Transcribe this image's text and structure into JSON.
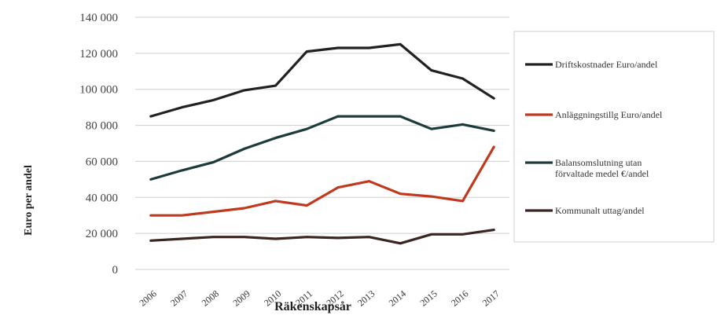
{
  "chart_data": {
    "type": "line",
    "title": "",
    "xlabel": "Räkenskapsår",
    "ylabel": "Euro per andel",
    "ylim": [
      0,
      140000
    ],
    "yticks": [
      0,
      20000,
      40000,
      60000,
      80000,
      100000,
      120000,
      140000
    ],
    "yticklabels": [
      "0",
      "20 000",
      "40 000",
      "60 000",
      "80 000",
      "100 000",
      "120 000",
      "140 000"
    ],
    "x": [
      "2006",
      "2007",
      "2008",
      "2009",
      "2010",
      "2011",
      "2012",
      "2013",
      "2014",
      "2015",
      "2016",
      "2017"
    ],
    "grid": true,
    "legend_position": "right",
    "series": [
      {
        "name": "Driftskostnader Euro/andel",
        "color": "#1f2222",
        "values": [
          85000,
          90000,
          94000,
          99500,
          102000,
          121000,
          123000,
          123000,
          125000,
          110500,
          106000,
          95000
        ]
      },
      {
        "name": "Anläggningstillg Euro/andel",
        "color": "#c0391e",
        "values": [
          30000,
          30000,
          32000,
          34000,
          38000,
          35500,
          45500,
          49000,
          42000,
          40500,
          38000,
          68000
        ]
      },
      {
        "name": "Balansomslutning utan förvaltade medel €/andel",
        "color": "#1d3b3a",
        "values": [
          50000,
          55000,
          59500,
          67000,
          73000,
          78000,
          85000,
          85000,
          85000,
          78000,
          80500,
          77000
        ]
      },
      {
        "name": "Kommunalt uttag/andel",
        "color": "#3a2520",
        "values": [
          16000,
          17000,
          18000,
          18000,
          17000,
          18000,
          17500,
          18000,
          14500,
          19500,
          19500,
          22000
        ]
      }
    ]
  }
}
